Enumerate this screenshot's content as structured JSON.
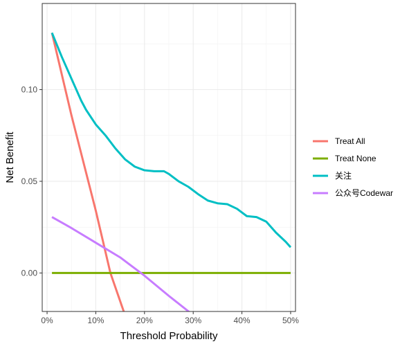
{
  "chart_data": {
    "type": "line",
    "title": "",
    "xlabel": "Threshold Probability",
    "ylabel": "Net Benefit",
    "xlim": [
      -0.01,
      0.51
    ],
    "ylim": [
      -0.021,
      0.147
    ],
    "x_ticks": [
      0,
      0.1,
      0.2,
      0.3,
      0.4,
      0.5
    ],
    "x_tick_labels": [
      "0%",
      "10%",
      "20%",
      "30%",
      "40%",
      "50%"
    ],
    "y_ticks": [
      0,
      0.05,
      0.1
    ],
    "y_tick_labels": [
      "0.00",
      "0.05",
      "0.10"
    ],
    "grid": true,
    "legend_position": "right",
    "series": [
      {
        "name": "Treat All",
        "color": "#F8766D",
        "x": [
          0.01,
          0.05,
          0.1,
          0.13,
          0.16
        ],
        "y": [
          0.131,
          0.086,
          0.034,
          0.0,
          -0.023
        ]
      },
      {
        "name": "Treat None",
        "color": "#7CAE00",
        "x": [
          0.01,
          0.5
        ],
        "y": [
          0.0,
          0.0
        ]
      },
      {
        "name": "关注",
        "color": "#00BFC4",
        "x": [
          0.01,
          0.03,
          0.05,
          0.07,
          0.08,
          0.1,
          0.12,
          0.14,
          0.16,
          0.18,
          0.2,
          0.22,
          0.24,
          0.25,
          0.27,
          0.29,
          0.31,
          0.33,
          0.35,
          0.37,
          0.39,
          0.41,
          0.43,
          0.45,
          0.47,
          0.49,
          0.5
        ],
        "y": [
          0.131,
          0.118,
          0.106,
          0.094,
          0.089,
          0.081,
          0.075,
          0.068,
          0.062,
          0.058,
          0.056,
          0.0555,
          0.0555,
          0.054,
          0.05,
          0.047,
          0.043,
          0.0395,
          0.038,
          0.0375,
          0.035,
          0.031,
          0.0305,
          0.028,
          0.022,
          0.017,
          0.014
        ]
      },
      {
        "name": "公众号Codewar",
        "color": "#C77CFF",
        "x": [
          0.01,
          0.05,
          0.1,
          0.15,
          0.2,
          0.25,
          0.3
        ],
        "y": [
          0.0305,
          0.0245,
          0.0165,
          0.0085,
          -0.0015,
          -0.0125,
          -0.023
        ]
      }
    ]
  }
}
